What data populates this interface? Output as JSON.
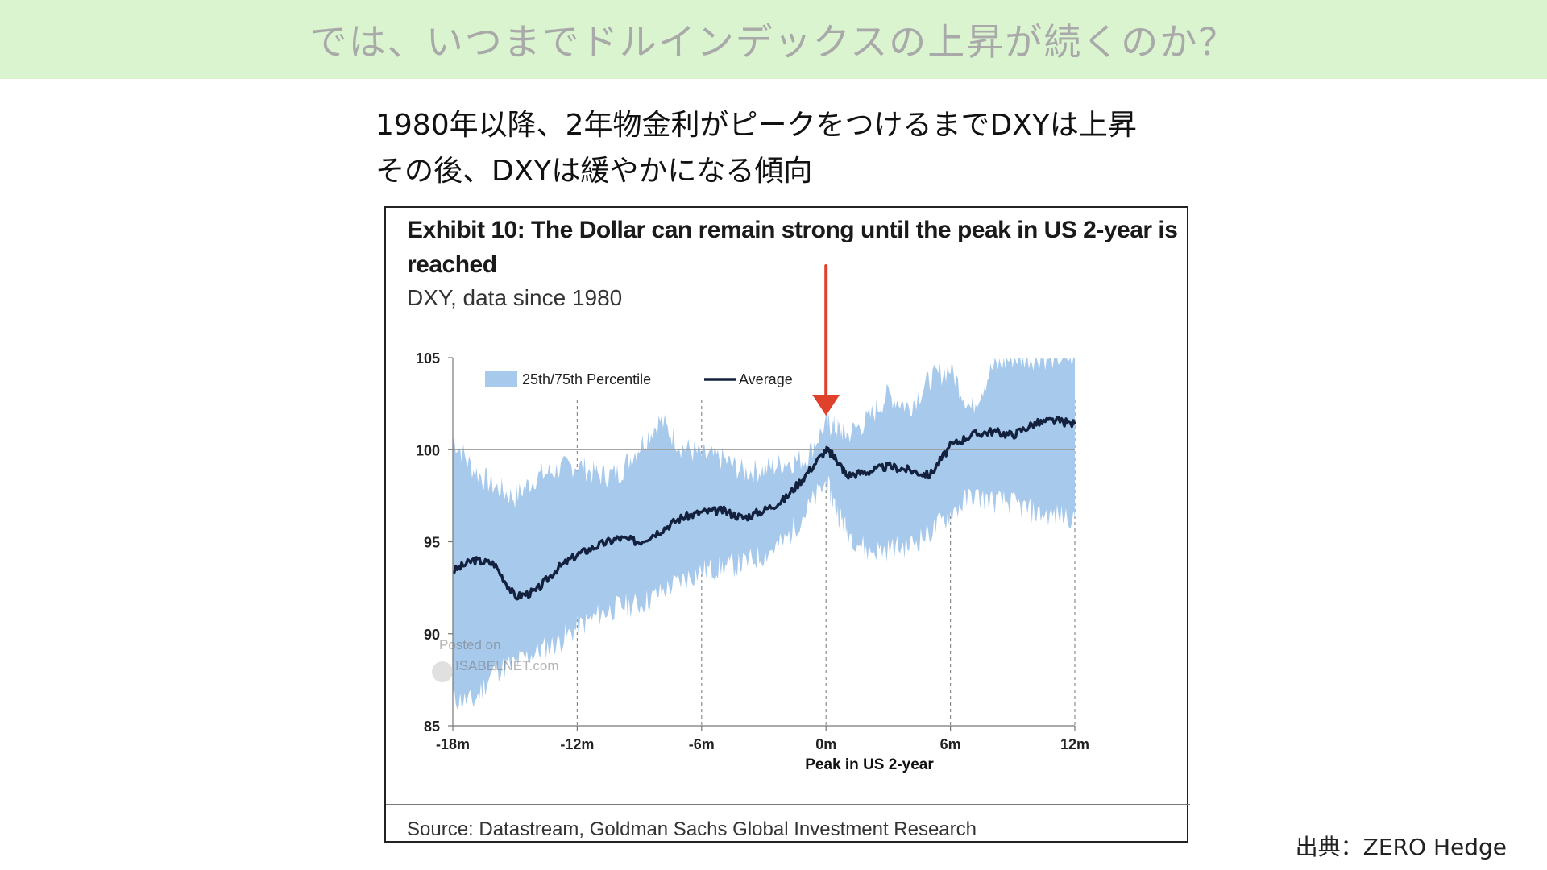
{
  "banner": {
    "title": "では、いつまでドルインデックスの上昇が続くのか？"
  },
  "subtitle": {
    "line1": "1980年以降、2年物金利がピークをつけるまでDXYは上昇",
    "line2": "その後、DXYは緩やかになる傾向"
  },
  "exhibit": {
    "title": "Exhibit 10: The Dollar can remain strong until the peak in US 2-year is reached",
    "subtitle": "DXY, data since 1980",
    "source": "Source: Datastream, Goldman Sachs Global Investment Research"
  },
  "watermark": {
    "line1": "Posted on",
    "line2": "ISABELNET.com"
  },
  "credit": "出典：ZERO Hedge",
  "colors": {
    "band": "#a7c9eb",
    "average": "#13213f",
    "arrow": "#e0412b",
    "banner": "#d9f4cf"
  },
  "chart_data": {
    "type": "area",
    "title": "Exhibit 10: The Dollar can remain strong until the peak in US 2-year is reached",
    "subtitle": "DXY, data since 1980",
    "xlabel": "Peak in US 2-year",
    "ylabel": "",
    "xlim": [
      -18,
      12
    ],
    "ylim": [
      85,
      105
    ],
    "x_tick_labels": [
      "-18m",
      "-12m",
      "-6m",
      "0m",
      "6m",
      "12m"
    ],
    "y_tick_labels": [
      "105",
      "100",
      "95",
      "90",
      "85"
    ],
    "legend": [
      "25th/75th Percentile",
      "Average"
    ],
    "legend_position": "top-left",
    "reference_line_y": 100,
    "grid": "dashed vertical lines at 6-month intervals",
    "annotation": "red arrow pointing to 0m peak",
    "x": [
      -18,
      -17,
      -16,
      -15,
      -14,
      -13,
      -12,
      -11,
      -10,
      -9,
      -8,
      -7,
      -6,
      -5,
      -4,
      -3,
      -2,
      -1,
      0,
      0.5,
      1,
      2,
      3,
      4,
      5,
      6,
      7,
      8,
      9,
      10,
      11,
      12
    ],
    "series": [
      {
        "name": "Average",
        "values": [
          93.4,
          94.0,
          93.8,
          92.0,
          92.3,
          93.5,
          94.3,
          94.8,
          95.2,
          95.0,
          95.6,
          96.3,
          96.6,
          96.7,
          96.3,
          96.7,
          97.3,
          98.6,
          100.0,
          99.5,
          98.6,
          98.8,
          99.1,
          98.9,
          98.6,
          100.2,
          100.8,
          101.0,
          100.8,
          101.4,
          101.6,
          101.4
        ]
      },
      {
        "name": "25th Percentile",
        "values": [
          86.5,
          86.3,
          88.0,
          88.4,
          89.0,
          89.5,
          90.3,
          91.0,
          91.5,
          91.6,
          92.2,
          92.9,
          93.4,
          93.6,
          93.8,
          94.3,
          95.0,
          96.6,
          98.2,
          96.8,
          95.6,
          94.5,
          94.6,
          94.8,
          95.5,
          96.5,
          97.5,
          97.2,
          97.1,
          96.6,
          96.4,
          96.4
        ]
      },
      {
        "name": "75th Percentile",
        "values": [
          100.6,
          98.9,
          98.0,
          97.4,
          98.5,
          98.9,
          99.2,
          98.6,
          98.7,
          100.2,
          101.6,
          100.2,
          99.7,
          99.5,
          98.8,
          98.9,
          99.3,
          99.5,
          101.4,
          101.2,
          100.8,
          101.6,
          103.0,
          102.3,
          103.8,
          104.4,
          102.2,
          104.4,
          105.0,
          105.0,
          105.0,
          105.0
        ]
      }
    ]
  }
}
